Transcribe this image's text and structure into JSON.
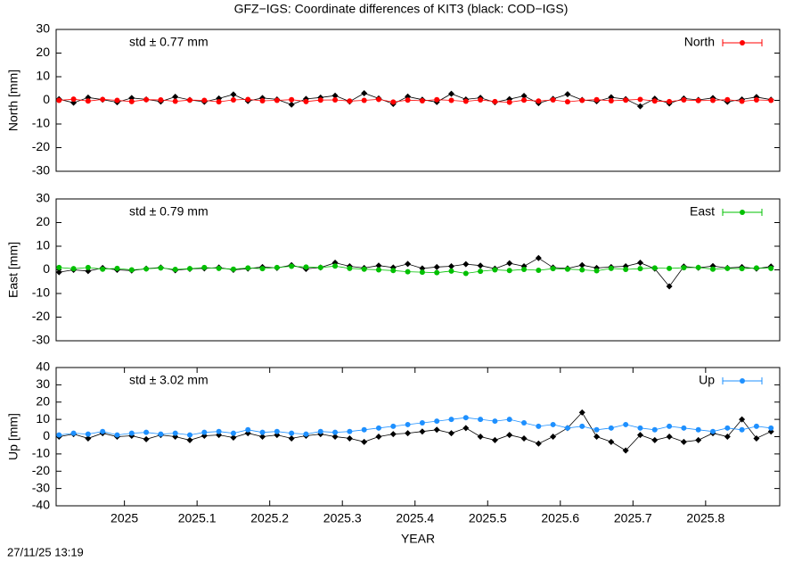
{
  "title": "GFZ−IGS: Coordinate differences of KIT3 (black: COD−IGS)",
  "footer": "27/11/25 13:19",
  "chart_data": [
    {
      "type": "line",
      "ylabel": "North [mm]",
      "annotation": "std ± 0.77 mm",
      "annotation_color": "#ff0000",
      "legend": "top-right",
      "xlim": [
        2024.906,
        2025.902
      ],
      "ylim": [
        -30,
        30
      ],
      "yticks": [
        -30,
        -20,
        -10,
        0,
        10,
        20,
        30
      ],
      "x": [
        2024.91,
        2024.93,
        2024.95,
        2024.97,
        2024.99,
        2025.01,
        2025.03,
        2025.05,
        2025.07,
        2025.09,
        2025.11,
        2025.13,
        2025.15,
        2025.17,
        2025.19,
        2025.21,
        2025.23,
        2025.25,
        2025.27,
        2025.29,
        2025.31,
        2025.33,
        2025.35,
        2025.37,
        2025.39,
        2025.41,
        2025.43,
        2025.45,
        2025.47,
        2025.49,
        2025.51,
        2025.53,
        2025.55,
        2025.57,
        2025.59,
        2025.61,
        2025.63,
        2025.65,
        2025.67,
        2025.69,
        2025.71,
        2025.73,
        2025.75,
        2025.77,
        2025.79,
        2025.81,
        2025.83,
        2025.85,
        2025.87,
        2025.89
      ],
      "series": [
        {
          "color": "#000000",
          "values": [
            0.5,
            -1,
            1.2,
            0.3,
            -0.8,
            1,
            0.4,
            -0.5,
            1.5,
            0.2,
            -0.6,
            0.8,
            2.5,
            -0.3,
            1,
            0.4,
            -1.8,
            0.6,
            1.2,
            2,
            -0.5,
            3,
            0.8,
            -1.5,
            1.6,
            0.3,
            -0.7,
            2.8,
            0.4,
            1.1,
            -0.8,
            0.5,
            1.9,
            -1.2,
            0.6,
            2.6,
            0.2,
            -0.4,
            1.3,
            0.5,
            -2.5,
            0.7,
            -1.3,
            0.8,
            0.2,
            1,
            -0.6,
            0.4,
            1.4,
            0.3
          ]
        },
        {
          "name": "North",
          "color": "#ff0000",
          "values": [
            0,
            0.5,
            -0.3,
            0.4,
            0,
            -0.5,
            0.3,
            0.2,
            -0.4,
            0.1,
            0,
            -0.6,
            0.2,
            0.4,
            -0.2,
            0,
            0.3,
            -0.5,
            0.1,
            0.2,
            -0.3,
            0,
            0.4,
            -0.7,
            0.1,
            -0.2,
            0.3,
            0,
            -0.4,
            0.2,
            -0.5,
            -0.8,
            0.1,
            -0.3,
            0.2,
            -0.6,
            0,
            0.3,
            -0.2,
            0.1,
            0.4,
            -0.3,
            -0.5,
            0.2,
            -0.1,
            0,
            0.3,
            -0.4,
            0.2,
            0
          ]
        }
      ]
    },
    {
      "type": "line",
      "ylabel": "East [mm]",
      "annotation": "std ± 0.79 mm",
      "annotation_color": "#00c000",
      "legend": "top-right",
      "xlim": [
        2024.906,
        2025.902
      ],
      "ylim": [
        -30,
        30
      ],
      "yticks": [
        -30,
        -20,
        -10,
        0,
        10,
        20,
        30
      ],
      "x": [
        2024.91,
        2024.93,
        2024.95,
        2024.97,
        2024.99,
        2025.01,
        2025.03,
        2025.05,
        2025.07,
        2025.09,
        2025.11,
        2025.13,
        2025.15,
        2025.17,
        2025.19,
        2025.21,
        2025.23,
        2025.25,
        2025.27,
        2025.29,
        2025.31,
        2025.33,
        2025.35,
        2025.37,
        2025.39,
        2025.41,
        2025.43,
        2025.45,
        2025.47,
        2025.49,
        2025.51,
        2025.53,
        2025.55,
        2025.57,
        2025.59,
        2025.61,
        2025.63,
        2025.65,
        2025.67,
        2025.69,
        2025.71,
        2025.73,
        2025.75,
        2025.77,
        2025.79,
        2025.81,
        2025.83,
        2025.85,
        2025.87,
        2025.89
      ],
      "series": [
        {
          "color": "#000000",
          "values": [
            -1,
            0,
            -0.5,
            0.8,
            0,
            -0.3,
            0.5,
            1,
            -0.2,
            0.4,
            0.6,
            1,
            0,
            0.5,
            1.2,
            0.8,
            2,
            0.4,
            1,
            3,
            1.5,
            0.8,
            1.8,
            1,
            2.5,
            0.6,
            1.2,
            1.5,
            2.4,
            1.8,
            0.5,
            2.8,
            1.5,
            5,
            1,
            0.6,
            2,
            0.8,
            1.2,
            1.5,
            3,
            0.5,
            -7,
            1.4,
            0.9,
            1.6,
            0.8,
            1.2,
            0.5,
            1.4
          ]
        },
        {
          "name": "East",
          "color": "#00c000",
          "values": [
            1,
            0.5,
            1,
            0.3,
            0.6,
            0,
            0.4,
            0.8,
            0.2,
            0.5,
            1,
            0.6,
            0.3,
            0.8,
            0.5,
            1,
            1.5,
            1.2,
            1,
            1.6,
            0.6,
            0.3,
            0,
            -0.3,
            -0.8,
            -1,
            -1.2,
            -0.5,
            -1.5,
            -0.6,
            0,
            -0.3,
            0.2,
            -0.2,
            0.5,
            0.3,
            0,
            -0.4,
            0.6,
            0.2,
            0.5,
            0.8,
            0.6,
            0.9,
            1,
            0.3,
            0.6,
            0.5,
            0.8,
            0.6
          ]
        }
      ]
    },
    {
      "type": "line",
      "ylabel": "Up [mm]",
      "xlabel": "YEAR",
      "annotation": "std ± 3.02 mm",
      "annotation_color": "#1e90ff",
      "legend": "top-right",
      "xlim": [
        2024.906,
        2025.902
      ],
      "xticks": [
        2025,
        2025.1,
        2025.2,
        2025.3,
        2025.4,
        2025.5,
        2025.6,
        2025.7,
        2025.8
      ],
      "ylim": [
        -40,
        40
      ],
      "yticks": [
        -40,
        -30,
        -20,
        -10,
        0,
        10,
        20,
        30,
        40
      ],
      "x": [
        2024.91,
        2024.93,
        2024.95,
        2024.97,
        2024.99,
        2025.01,
        2025.03,
        2025.05,
        2025.07,
        2025.09,
        2025.11,
        2025.13,
        2025.15,
        2025.17,
        2025.19,
        2025.21,
        2025.23,
        2025.25,
        2025.27,
        2025.29,
        2025.31,
        2025.33,
        2025.35,
        2025.37,
        2025.39,
        2025.41,
        2025.43,
        2025.45,
        2025.47,
        2025.49,
        2025.51,
        2025.53,
        2025.55,
        2025.57,
        2025.59,
        2025.61,
        2025.63,
        2025.65,
        2025.67,
        2025.69,
        2025.71,
        2025.73,
        2025.75,
        2025.77,
        2025.79,
        2025.81,
        2025.83,
        2025.85,
        2025.87,
        2025.89
      ],
      "series": [
        {
          "color": "#000000",
          "values": [
            0,
            1.5,
            -1,
            2,
            0,
            0.5,
            -1.5,
            1,
            0,
            -2,
            0.5,
            1,
            -0.5,
            2,
            0,
            1,
            -1,
            0.5,
            1.5,
            0,
            -1,
            -3,
            0,
            1.5,
            2,
            3,
            4,
            2,
            5,
            0,
            -2,
            1,
            -1,
            -4,
            0,
            5,
            14,
            0,
            -3,
            -8,
            1,
            -2,
            0,
            -3,
            -2,
            2,
            0,
            10,
            -1,
            3
          ]
        },
        {
          "name": "Up",
          "color": "#1e90ff",
          "values": [
            1,
            2,
            1.5,
            3,
            1,
            2,
            2.5,
            1.5,
            2,
            1,
            2.5,
            3,
            2,
            4,
            2.5,
            3,
            2,
            1.5,
            3,
            2.5,
            3,
            4,
            5,
            6,
            7,
            8,
            9,
            10,
            11,
            10,
            9,
            10,
            8,
            6,
            7,
            5,
            6,
            4,
            5,
            7,
            5,
            4,
            6,
            5,
            4,
            3,
            5,
            4,
            6,
            5
          ]
        }
      ]
    }
  ]
}
